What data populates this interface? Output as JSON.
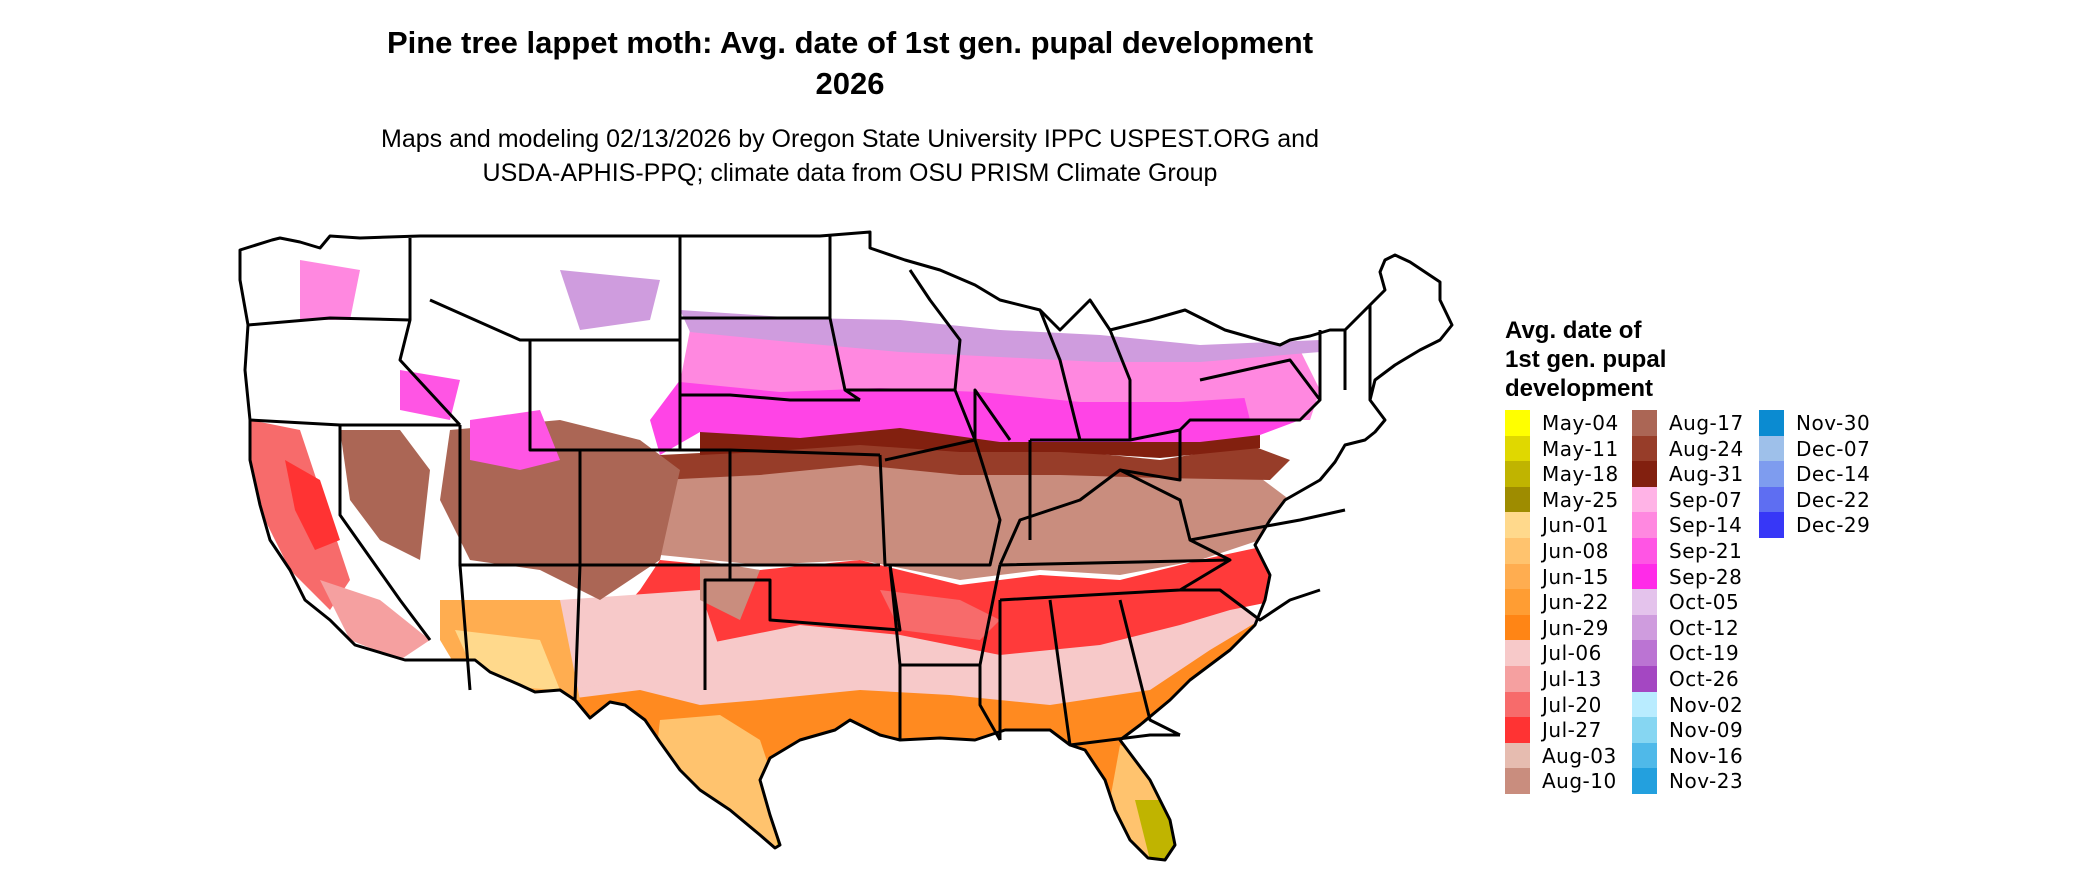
{
  "title": {
    "line1": "Pine tree lappet moth: Avg. date of 1st gen. pupal development",
    "line2": "2026"
  },
  "subtitle": {
    "line1": "Maps and modeling 02/13/2026 by Oregon State University IPPC USPEST.ORG and",
    "line2": "USDA-APHIS-PPQ; climate data from OSU PRISM Climate Group"
  },
  "legend": {
    "title_lines": [
      "Avg. date of",
      "1st gen. pupal",
      "development"
    ],
    "columns": [
      [
        {
          "label": "May-04",
          "color": "#ffff00"
        },
        {
          "label": "May-11",
          "color": "#e0d800"
        },
        {
          "label": "May-18",
          "color": "#c0b400"
        },
        {
          "label": "May-25",
          "color": "#9e8c00"
        },
        {
          "label": "Jun-01",
          "color": "#ffd98c"
        },
        {
          "label": "Jun-08",
          "color": "#ffc36e"
        },
        {
          "label": "Jun-15",
          "color": "#ffad50"
        },
        {
          "label": "Jun-22",
          "color": "#ff9d33"
        },
        {
          "label": "Jun-29",
          "color": "#ff8515"
        },
        {
          "label": "Jul-06",
          "color": "#f7c9c9"
        },
        {
          "label": "Jul-13",
          "color": "#f5a0a0"
        },
        {
          "label": "Jul-20",
          "color": "#f76b6b"
        },
        {
          "label": "Jul-27",
          "color": "#ff3333"
        },
        {
          "label": "Aug-03",
          "color": "#e6bcb0"
        },
        {
          "label": "Aug-10",
          "color": "#c98d7e"
        }
      ],
      [
        {
          "label": "Aug-17",
          "color": "#ab6655"
        },
        {
          "label": "Aug-24",
          "color": "#973d29"
        },
        {
          "label": "Aug-31",
          "color": "#82200f"
        },
        {
          "label": "Sep-07",
          "color": "#ffb3e6"
        },
        {
          "label": "Sep-14",
          "color": "#ff88e0"
        },
        {
          "label": "Sep-21",
          "color": "#ff55e4"
        },
        {
          "label": "Sep-28",
          "color": "#ff2be8"
        },
        {
          "label": "Oct-05",
          "color": "#e4c3ec"
        },
        {
          "label": "Oct-12",
          "color": "#cf9cde"
        },
        {
          "label": "Oct-19",
          "color": "#bb74d3"
        },
        {
          "label": "Oct-26",
          "color": "#a447c2"
        },
        {
          "label": "Nov-02",
          "color": "#b9ecff"
        },
        {
          "label": "Nov-09",
          "color": "#86d6f2"
        },
        {
          "label": "Nov-16",
          "color": "#4fb9e9"
        },
        {
          "label": "Nov-23",
          "color": "#23a0de"
        }
      ],
      [
        {
          "label": "Nov-30",
          "color": "#0b8bd1"
        },
        {
          "label": "Dec-07",
          "color": "#9ec0ea"
        },
        {
          "label": "Dec-14",
          "color": "#7e9cef"
        },
        {
          "label": "Dec-22",
          "color": "#5e6ef2"
        },
        {
          "label": "Dec-29",
          "color": "#3737f7"
        }
      ]
    ]
  }
}
